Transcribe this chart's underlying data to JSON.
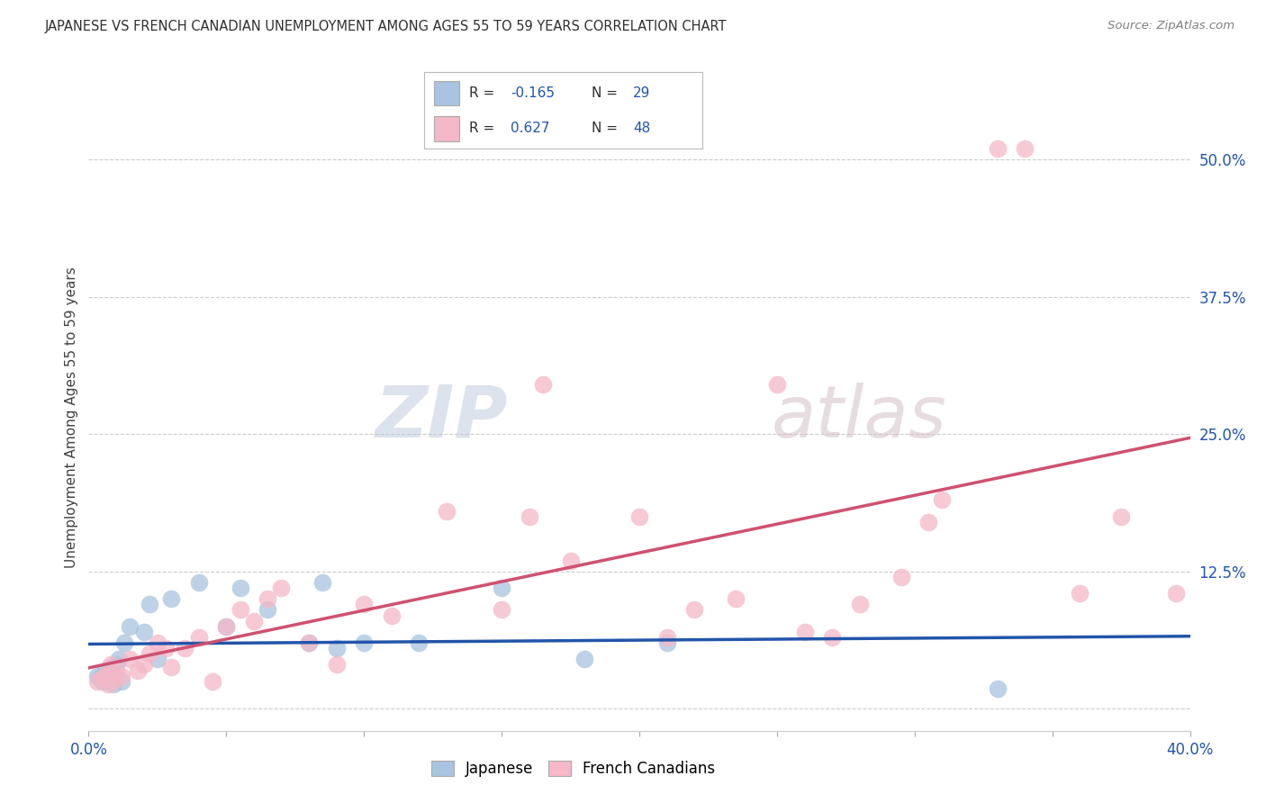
{
  "title": "JAPANESE VS FRENCH CANADIAN UNEMPLOYMENT AMONG AGES 55 TO 59 YEARS CORRELATION CHART",
  "source": "Source: ZipAtlas.com",
  "ylabel": "Unemployment Among Ages 55 to 59 years",
  "xlim": [
    0.0,
    0.4
  ],
  "ylim": [
    -0.02,
    0.55
  ],
  "xticks": [
    0.0,
    0.05,
    0.1,
    0.15,
    0.2,
    0.25,
    0.3,
    0.35,
    0.4
  ],
  "xticklabels": [
    "0.0%",
    "",
    "",
    "",
    "",
    "",
    "",
    "",
    "40.0%"
  ],
  "ytick_positions": [
    0.0,
    0.125,
    0.25,
    0.375,
    0.5
  ],
  "yticklabels": [
    "",
    "12.5%",
    "25.0%",
    "37.5%",
    "50.0%"
  ],
  "grid_color": "#cccccc",
  "background_color": "#ffffff",
  "japanese_color": "#a8c4e0",
  "french_color": "#f4b8c8",
  "japanese_line_color": "#2255aa",
  "french_line_color": "#d05070",
  "legend_r_japanese": "-0.165",
  "legend_n_japanese": "29",
  "legend_r_french": "0.627",
  "legend_n_french": "48",
  "japanese_x": [
    0.003,
    0.004,
    0.005,
    0.006,
    0.007,
    0.008,
    0.009,
    0.01,
    0.011,
    0.012,
    0.013,
    0.015,
    0.02,
    0.022,
    0.025,
    0.03,
    0.04,
    0.05,
    0.055,
    0.065,
    0.08,
    0.085,
    0.09,
    0.1,
    0.12,
    0.15,
    0.18,
    0.21,
    0.33
  ],
  "japanese_y": [
    0.03,
    0.028,
    0.025,
    0.035,
    0.032,
    0.038,
    0.022,
    0.04,
    0.045,
    0.025,
    0.06,
    0.075,
    0.07,
    0.095,
    0.045,
    0.1,
    0.115,
    0.075,
    0.11,
    0.09,
    0.06,
    0.115,
    0.055,
    0.06,
    0.06,
    0.11,
    0.045,
    0.06,
    0.018
  ],
  "french_x": [
    0.003,
    0.005,
    0.006,
    0.007,
    0.008,
    0.009,
    0.01,
    0.012,
    0.015,
    0.018,
    0.02,
    0.022,
    0.025,
    0.028,
    0.03,
    0.035,
    0.04,
    0.045,
    0.05,
    0.055,
    0.06,
    0.065,
    0.07,
    0.08,
    0.09,
    0.1,
    0.11,
    0.13,
    0.15,
    0.16,
    0.165,
    0.175,
    0.2,
    0.21,
    0.22,
    0.235,
    0.25,
    0.26,
    0.27,
    0.28,
    0.295,
    0.305,
    0.31,
    0.33,
    0.34,
    0.36,
    0.375,
    0.395
  ],
  "french_y": [
    0.025,
    0.028,
    0.03,
    0.022,
    0.04,
    0.025,
    0.035,
    0.03,
    0.045,
    0.035,
    0.04,
    0.05,
    0.06,
    0.055,
    0.038,
    0.055,
    0.065,
    0.025,
    0.075,
    0.09,
    0.08,
    0.1,
    0.11,
    0.06,
    0.04,
    0.095,
    0.085,
    0.18,
    0.09,
    0.175,
    0.295,
    0.135,
    0.175,
    0.065,
    0.09,
    0.1,
    0.295,
    0.07,
    0.065,
    0.095,
    0.12,
    0.17,
    0.19,
    0.51,
    0.51,
    0.105,
    0.175,
    0.105
  ],
  "watermark_zip_color": "#c8d4e8",
  "watermark_atlas_color": "#d4c8c8"
}
